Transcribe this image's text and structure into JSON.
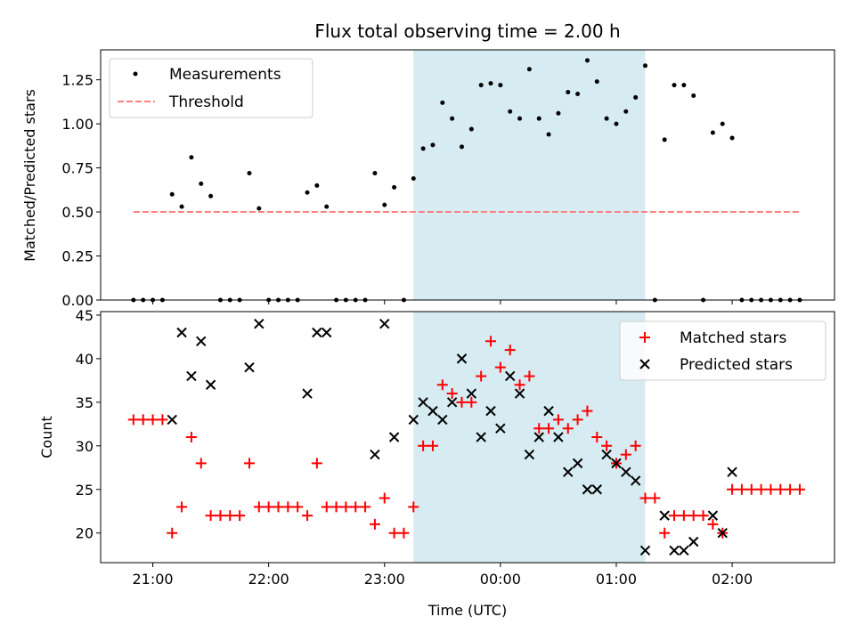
{
  "chart_data": [
    {
      "type": "scatter",
      "title": "Flux total observing time = 2.00 h",
      "xlabel": "",
      "ylabel": "Matched/Predicted stars",
      "ylim": [
        0,
        1.42
      ],
      "xlim": [
        "20:33",
        "02:53"
      ],
      "grid": false,
      "legend_position": "top-left",
      "highlight_span": {
        "start": "23:15",
        "end": "01:15",
        "color": "#add8e6"
      },
      "y_ticks": [
        "0.00",
        "0.25",
        "0.50",
        "0.75",
        "1.00",
        "1.25"
      ],
      "series": [
        {
          "name": "Measurements",
          "kind": "dots",
          "color": "#000000",
          "x": [
            "20:50",
            "20:55",
            "21:00",
            "21:05",
            "21:10",
            "21:15",
            "21:20",
            "21:25",
            "21:30",
            "21:35",
            "21:40",
            "21:45",
            "21:50",
            "21:55",
            "22:00",
            "22:05",
            "22:10",
            "22:15",
            "22:20",
            "22:25",
            "22:30",
            "22:35",
            "22:40",
            "22:45",
            "22:50",
            "22:55",
            "23:00",
            "23:05",
            "23:10",
            "23:15",
            "23:20",
            "23:25",
            "23:30",
            "23:35",
            "23:40",
            "23:45",
            "23:50",
            "23:55",
            "00:00",
            "00:05",
            "00:10",
            "00:15",
            "00:20",
            "00:25",
            "00:30",
            "00:35",
            "00:40",
            "00:45",
            "00:50",
            "00:55",
            "01:00",
            "01:05",
            "01:10",
            "01:15",
            "01:20",
            "01:25",
            "01:30",
            "01:35",
            "01:40",
            "01:45",
            "01:50",
            "01:55",
            "02:00",
            "02:05",
            "02:10",
            "02:15",
            "02:20",
            "02:25",
            "02:30",
            "02:35"
          ],
          "y": [
            0,
            0,
            0,
            0,
            0.6,
            0.53,
            0.81,
            0.66,
            0.59,
            0,
            0,
            0,
            0.72,
            0.52,
            0,
            0,
            0,
            0,
            0.61,
            0.65,
            0.53,
            0,
            0,
            0,
            0,
            0.72,
            0.54,
            0.64,
            0,
            0.69,
            0.86,
            0.88,
            1.12,
            1.03,
            0.87,
            0.97,
            1.22,
            1.23,
            1.22,
            1.07,
            1.03,
            1.31,
            1.03,
            0.94,
            1.06,
            1.18,
            1.17,
            1.36,
            1.24,
            1.03,
            1.0,
            1.07,
            1.15,
            1.33,
            0,
            0.91,
            1.22,
            1.22,
            1.16,
            0,
            0.95,
            1.0,
            0.92,
            0,
            0,
            0,
            0,
            0,
            0,
            0
          ]
        },
        {
          "name": "Threshold",
          "kind": "dashed",
          "color": "#ff7f7f",
          "x": [
            "20:50",
            "02:35"
          ],
          "y": [
            0.5,
            0.5
          ]
        }
      ]
    },
    {
      "type": "scatter",
      "title": "",
      "xlabel": "Time (UTC)",
      "ylabel": "Count",
      "ylim": [
        16.6,
        45.4
      ],
      "xlim": [
        "20:33",
        "02:53"
      ],
      "grid": false,
      "legend_position": "top-right",
      "highlight_span": {
        "start": "23:15",
        "end": "01:15",
        "color": "#add8e6"
      },
      "y_ticks": [
        "20",
        "25",
        "30",
        "35",
        "40",
        "45"
      ],
      "x_ticks": [
        "21:00",
        "22:00",
        "23:00",
        "00:00",
        "01:00",
        "02:00"
      ],
      "series": [
        {
          "name": "Matched stars",
          "kind": "plus",
          "color": "#ff0000",
          "x": [
            "20:50",
            "20:55",
            "21:00",
            "21:05",
            "21:10",
            "21:15",
            "21:20",
            "21:25",
            "21:30",
            "21:35",
            "21:40",
            "21:45",
            "21:50",
            "21:55",
            "22:00",
            "22:05",
            "22:10",
            "22:15",
            "22:20",
            "22:25",
            "22:30",
            "22:35",
            "22:40",
            "22:45",
            "22:50",
            "22:55",
            "23:00",
            "23:05",
            "23:10",
            "23:15",
            "23:20",
            "23:25",
            "23:30",
            "23:35",
            "23:40",
            "23:45",
            "23:50",
            "23:55",
            "00:00",
            "00:05",
            "00:10",
            "00:15",
            "00:20",
            "00:25",
            "00:30",
            "00:35",
            "00:40",
            "00:45",
            "00:50",
            "00:55",
            "01:00",
            "01:05",
            "01:10",
            "01:15",
            "01:20",
            "01:25",
            "01:30",
            "01:35",
            "01:40",
            "01:45",
            "01:50",
            "01:55",
            "02:00",
            "02:05",
            "02:10",
            "02:15",
            "02:20",
            "02:25",
            "02:30",
            "02:35"
          ],
          "y": [
            33,
            33,
            33,
            33,
            20,
            23,
            31,
            28,
            22,
            22,
            22,
            22,
            28,
            23,
            23,
            23,
            23,
            23,
            22,
            28,
            23,
            23,
            23,
            23,
            23,
            21,
            24,
            20,
            20,
            23,
            30,
            30,
            37,
            36,
            35,
            35,
            38,
            42,
            39,
            41,
            37,
            38,
            32,
            32,
            33,
            32,
            33,
            34,
            31,
            30,
            28,
            29,
            30,
            24,
            24,
            20,
            22,
            22,
            22,
            22,
            21,
            20,
            25,
            25,
            25,
            25,
            25,
            25,
            25,
            25
          ]
        },
        {
          "name": "Predicted stars",
          "kind": "x",
          "color": "#000000",
          "x": [
            "21:10",
            "21:15",
            "21:20",
            "21:25",
            "21:30",
            "21:50",
            "21:55",
            "22:20",
            "22:25",
            "22:30",
            "22:55",
            "23:00",
            "23:05",
            "23:15",
            "23:20",
            "23:25",
            "23:30",
            "23:35",
            "23:40",
            "23:45",
            "23:50",
            "23:55",
            "00:00",
            "00:05",
            "00:10",
            "00:15",
            "00:20",
            "00:25",
            "00:30",
            "00:35",
            "00:40",
            "00:45",
            "00:50",
            "00:55",
            "01:00",
            "01:05",
            "01:10",
            "01:15",
            "01:25",
            "01:30",
            "01:35",
            "01:40",
            "01:50",
            "01:55",
            "02:00"
          ],
          "y": [
            33,
            43,
            38,
            42,
            37,
            39,
            44,
            36,
            43,
            43,
            29,
            44,
            31,
            33,
            35,
            34,
            33,
            35,
            40,
            36,
            31,
            34,
            32,
            38,
            36,
            29,
            31,
            34,
            31,
            27,
            28,
            25,
            25,
            29,
            28,
            27,
            26,
            18,
            22,
            18,
            18,
            19,
            22,
            20,
            27
          ]
        }
      ]
    }
  ]
}
